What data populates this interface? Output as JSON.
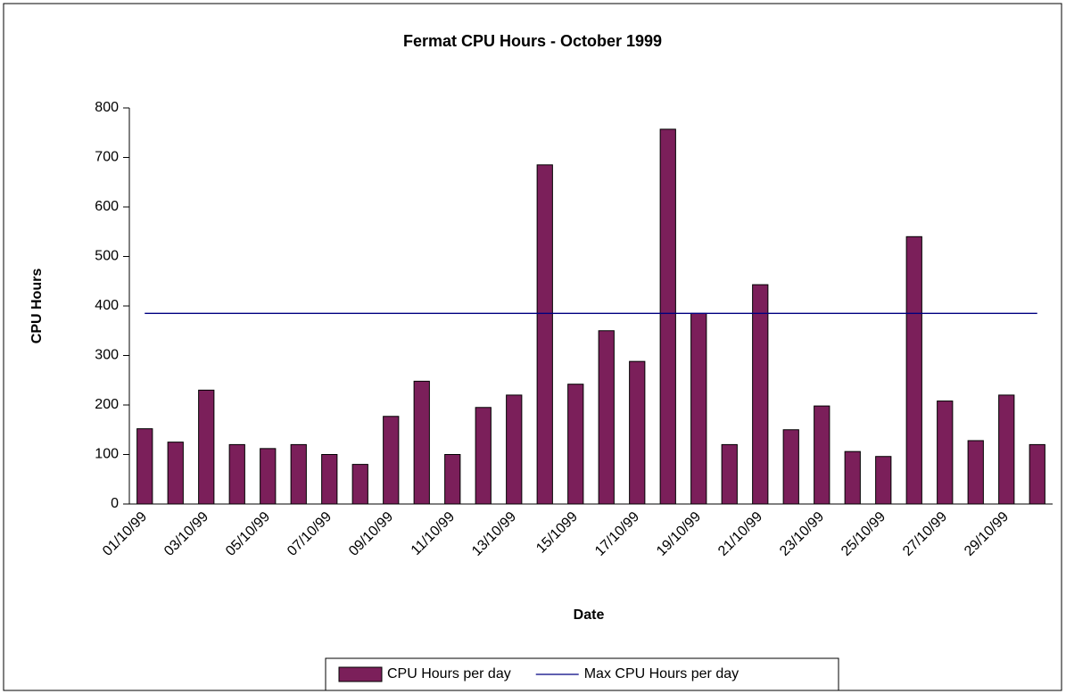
{
  "chart_data": {
    "type": "bar",
    "title": "Fermat CPU Hours - October 1999",
    "x_label": "Date",
    "y_label": "CPU Hours",
    "categories": [
      "01/10/99",
      null,
      "03/10/99",
      null,
      "05/10/99",
      null,
      "07/10/99",
      null,
      "09/10/99",
      null,
      "11/10/99",
      null,
      "13/10/99",
      null,
      "15/1099",
      null,
      "17/10/99",
      null,
      "19/10/99",
      null,
      "21/10/99",
      null,
      "23/10/99",
      null,
      "25/10/99",
      null,
      "27/10/99",
      null,
      "29/10/99",
      null
    ],
    "series": [
      {
        "name": "CPU Hours per day",
        "type": "bar",
        "color": "#7b1f5a",
        "values": [
          152,
          125,
          230,
          120,
          112,
          120,
          100,
          80,
          177,
          248,
          100,
          195,
          220,
          685,
          242,
          350,
          288,
          757,
          385,
          120,
          443,
          150,
          198,
          106,
          96,
          540,
          208,
          128,
          220,
          120
        ]
      },
      {
        "name": "Max CPU Hours per day",
        "type": "line",
        "color": "#000080",
        "values": [
          385,
          385,
          385,
          385,
          385,
          385,
          385,
          385,
          385,
          385,
          385,
          385,
          385,
          385,
          385,
          385,
          385,
          385,
          385,
          385,
          385,
          385,
          385,
          385,
          385,
          385,
          385,
          385,
          385,
          385
        ]
      }
    ],
    "ylim": [
      0,
      800
    ],
    "yticks": [
      0,
      100,
      200,
      300,
      400,
      500,
      600,
      700,
      800
    ],
    "grid": false,
    "legend": "bottom"
  }
}
